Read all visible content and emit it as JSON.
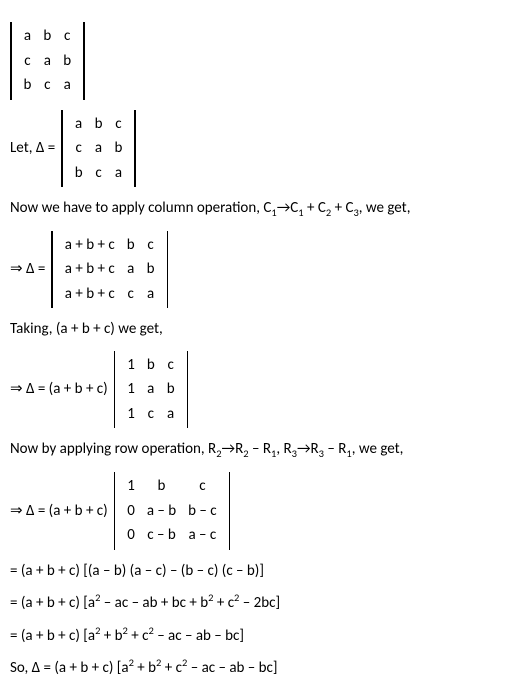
{
  "det0": {
    "rows": [
      [
        "a",
        "b",
        "c"
      ],
      [
        "c",
        "a",
        "b"
      ],
      [
        "b",
        "c",
        "a"
      ]
    ],
    "col_widths": [
      "auto",
      "auto",
      "auto"
    ]
  },
  "let_prefix": "Let, Δ  =  ",
  "det1": {
    "rows": [
      [
        "a",
        "b",
        "c"
      ],
      [
        "c",
        "a",
        "b"
      ],
      [
        "b",
        "c",
        "a"
      ]
    ],
    "col_widths": [
      "auto",
      "auto",
      "auto"
    ]
  },
  "text_colop": {
    "pre": "Now we have to apply column operation, C",
    "s1": "1",
    "arrow": "→C",
    "s2": "1",
    "mid": " + C",
    "s3": "2",
    "mid2": " + C",
    "s4": "3",
    "post": ", we get,"
  },
  "eq2_prefix": "⇒ Δ  =  ",
  "det2": {
    "rows": [
      [
        "a  +  b  +  c",
        "b",
        "c"
      ],
      [
        "a  +  b  +  c",
        "a",
        "b"
      ],
      [
        "a  +  b  +  c",
        "c",
        "a"
      ]
    ],
    "col_widths": [
      "auto",
      "auto",
      "auto"
    ]
  },
  "text_taking": "Taking, (a + b + c) we get,",
  "eq3_prefix": "⇒ Δ  =  (a  +  b  +  c) ",
  "det3": {
    "rows": [
      [
        "1",
        "b",
        "c"
      ],
      [
        "1",
        "a",
        "b"
      ],
      [
        "1",
        "c",
        "a"
      ]
    ],
    "col_widths": [
      "auto",
      "auto",
      "auto"
    ]
  },
  "text_rowop": {
    "pre": "Now by applying row operation, R",
    "s1": "2",
    "arrow": "→R",
    "s2": "2",
    "mid": " – R",
    "s3": "1",
    "mid2": ", R",
    "s4": "3",
    "arrow2": "→R",
    "s5": "3",
    "mid3": " – R",
    "s6": "1",
    "post": ", we get,"
  },
  "eq4_prefix": "⇒ Δ  =  (a  +  b  +  c) ",
  "det4": {
    "rows": [
      [
        "1",
        "b",
        "c"
      ],
      [
        "0",
        "a – b",
        "b – c"
      ],
      [
        "0",
        "c – b",
        "a – c"
      ]
    ],
    "col_widths": [
      "auto",
      "auto",
      "auto"
    ]
  },
  "exp1": "= (a + b + c) [(a – b) (a – c) – (b – c) (c – b)]",
  "exp2": {
    "pre": "= (a + b + c) [a",
    "p1": "2",
    "mid1": " – ac – ab + bc + b",
    "p2": "2",
    "mid2": " + c",
    "p3": "2",
    "post": " – 2bc]"
  },
  "exp3": {
    "pre": "= (a + b + c) [a",
    "p1": "2",
    "mid1": " + b",
    "p2": "2",
    "mid2": " + c",
    "p3": "2",
    "post": " – ac – ab – bc]"
  },
  "exp4": {
    "pre": "So, Δ = (a + b + c) [a",
    "p1": "2",
    "mid1": " + b",
    "p2": "2",
    "mid2": " + c",
    "p3": "2",
    "post": " – ac – ab – bc]"
  }
}
